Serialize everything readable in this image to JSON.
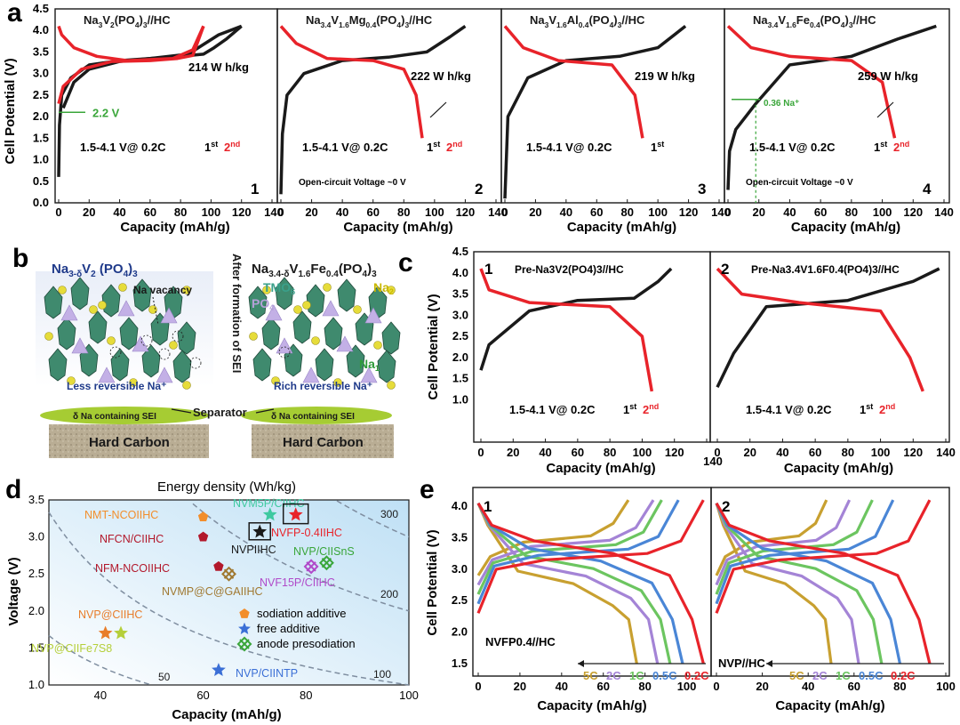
{
  "figure": {
    "panel_letters": [
      "a",
      "b",
      "c",
      "d",
      "e"
    ],
    "a": {
      "ylabel": "Cell Potential (V)",
      "xlabel": "Capacity (mAh/g)",
      "panels": [
        {
          "title": [
            "Na",
            "3",
            "V",
            "2",
            "(PO",
            "4",
            ")",
            "3",
            "//HC"
          ],
          "number": "1",
          "energy": "214 W h/kg",
          "cond": "1.5-4.1 V@ 0.2C",
          "annot": "2.2 V",
          "ocv": "",
          "cycles": [
            "1st",
            "2nd"
          ]
        },
        {
          "title": [
            "Na",
            "3.4",
            "V",
            "1.6",
            "Mg",
            "0.4",
            "(PO",
            "4",
            ")",
            "3",
            "//HC"
          ],
          "number": "2",
          "energy": "222 W h/kg",
          "cond": "1.5-4.1 V@ 0.2C",
          "annot": "",
          "ocv": "Open-circuit Voltage ~0 V",
          "cycles": [
            "1st",
            "2nd"
          ]
        },
        {
          "title": [
            "Na",
            "3",
            "V",
            "1.6",
            "Al",
            "0.4",
            "(PO",
            "4",
            ")",
            "3",
            "//HC"
          ],
          "number": "3",
          "energy": "219 W h/kg",
          "cond": "1.5-4.1 V@ 0.2C",
          "annot": "",
          "ocv": "",
          "cycles": [
            "1st"
          ]
        },
        {
          "title": [
            "Na",
            "3.4",
            "V",
            "1.6",
            "Fe",
            "0.4",
            "(PO",
            "4",
            ")",
            "3",
            "//HC"
          ],
          "number": "4",
          "energy": "259 W h/kg",
          "cond": "1.5-4.1 V@ 0.2C",
          "annot": "0.36 Na⁺",
          "ocv": "Open-circuit Voltage ~0 V",
          "cycles": [
            "1st",
            "2nd"
          ]
        }
      ]
    },
    "b": {
      "left_formula": "Na3-δV2 (PO4)3",
      "right_formula": "Na3.4-δV1.6Fe0.4(PO4)3",
      "na_vacancy": "Na vacancy",
      "tmo6": "TMO6",
      "po4": "PO4",
      "na2": "Na2",
      "na1": "Na1",
      "after_sei": "After formation of SEI",
      "less_rev": "Less reversible Na⁺",
      "rich_rev": "Rich reversible Na⁺",
      "separator": "Separator",
      "sei": "δ Na containing SEI",
      "hard_carbon": "Hard Carbon"
    },
    "c": {
      "ylabel": "Cell Potential (V)",
      "xlabel": "Capacity (mAh/g)",
      "panels": [
        {
          "number": "1",
          "title": "Pre-Na3V2(PO4)3//HC",
          "cond": "1.5-4.1 V@ 0.2C",
          "cycles": [
            "1st",
            "2nd"
          ]
        },
        {
          "number": "2",
          "title": "Pre-Na3.4V1.6F0.4(PO4)3//HC",
          "cond": "1.5-4.1 V@ 0.2C",
          "cycles": [
            "1st",
            "2nd"
          ]
        }
      ]
    },
    "d": {
      "title": "Energy density  (Wh/kg)",
      "xlabel": "Capacity  (mAh/g)",
      "ylabel": "Voltage (V)",
      "contour_labels": [
        "300",
        "200",
        "100",
        "50"
      ],
      "legend": [
        "sodiation additive",
        "free additive",
        "anode presodiation"
      ]
    },
    "e": {
      "ylabel": "Cell Potential (V)",
      "xlabel": "Capacity (mAh/g)",
      "panels": [
        {
          "number": "1",
          "label": "NVFP0.4//HC"
        },
        {
          "number": "2",
          "label": "NVP//HC"
        }
      ],
      "rates": [
        "5C",
        "2C",
        "1C",
        "0.5C",
        "0.2C"
      ]
    }
  },
  "chart_data": [
    {
      "type": "line",
      "panel": "a1",
      "title": "Na3V2(PO4)3//HC",
      "xlabel": "Capacity (mAh/g)",
      "ylabel": "Cell Potential (V)",
      "xlim": [
        0,
        140
      ],
      "ylim": [
        0,
        4.5
      ],
      "series": [
        {
          "name": "1st",
          "color": "#1a1a1a",
          "points": [
            [
              0,
              0.6
            ],
            [
              0.5,
              1.8
            ],
            [
              2,
              2.5
            ],
            [
              8,
              2.9
            ],
            [
              20,
              3.2
            ],
            [
              40,
              3.3
            ],
            [
              60,
              3.35
            ],
            [
              80,
              3.4
            ],
            [
              95,
              3.45
            ],
            [
              102,
              3.6
            ],
            [
              110,
              3.8
            ],
            [
              120,
              4.1
            ]
          ]
        },
        {
          "name": "1st",
          "color": "#1a1a1a",
          "points": [
            [
              120,
              4.1
            ],
            [
              105,
              3.9
            ],
            [
              85,
              3.45
            ],
            [
              60,
              3.35
            ],
            [
              40,
              3.28
            ],
            [
              20,
              3.1
            ],
            [
              10,
              2.8
            ],
            [
              3,
              2.2
            ]
          ]
        },
        {
          "name": "2nd",
          "color": "#e8232a",
          "points": [
            [
              0,
              2.3
            ],
            [
              3,
              2.7
            ],
            [
              15,
              3.1
            ],
            [
              35,
              3.28
            ],
            [
              60,
              3.3
            ],
            [
              78,
              3.35
            ],
            [
              88,
              3.42
            ],
            [
              95,
              4.1
            ]
          ]
        },
        {
          "name": "2nd",
          "color": "#e8232a",
          "points": [
            [
              95,
              4.1
            ],
            [
              88,
              3.55
            ],
            [
              75,
              3.35
            ],
            [
              45,
              3.3
            ],
            [
              25,
              3.4
            ],
            [
              10,
              3.6
            ],
            [
              2,
              3.9
            ],
            [
              0,
              4.1
            ]
          ]
        }
      ]
    },
    {
      "type": "line",
      "panel": "a2",
      "title": "Na3.4V1.6Mg0.4(PO4)3//HC",
      "xlim": [
        0,
        140
      ],
      "ylim": [
        0,
        4.5
      ],
      "series": [
        {
          "name": "1st",
          "color": "#1a1a1a",
          "points": [
            [
              0,
              0.2
            ],
            [
              1,
              1.6
            ],
            [
              4,
              2.5
            ],
            [
              15,
              3.0
            ],
            [
              40,
              3.3
            ],
            [
              70,
              3.38
            ],
            [
              95,
              3.5
            ],
            [
              110,
              3.85
            ],
            [
              120,
              4.1
            ]
          ]
        },
        {
          "name": "2nd",
          "color": "#e8232a",
          "points": [
            [
              0,
              4.1
            ],
            [
              10,
              3.7
            ],
            [
              30,
              3.35
            ],
            [
              60,
              3.3
            ],
            [
              80,
              3.1
            ],
            [
              88,
              2.5
            ],
            [
              92,
              1.5
            ]
          ]
        }
      ]
    },
    {
      "type": "line",
      "panel": "a3",
      "title": "Na3V1.6Al0.4(PO4)3//HC",
      "xlim": [
        0,
        140
      ],
      "ylim": [
        0,
        4.5
      ],
      "series": [
        {
          "name": "1st",
          "color": "#1a1a1a",
          "points": [
            [
              0,
              0.1
            ],
            [
              2,
              2.0
            ],
            [
              15,
              2.9
            ],
            [
              40,
              3.3
            ],
            [
              75,
              3.4
            ],
            [
              100,
              3.6
            ],
            [
              118,
              4.1
            ]
          ]
        },
        {
          "name": "2nd",
          "color": "#e8232a",
          "points": [
            [
              0,
              4.1
            ],
            [
              12,
              3.6
            ],
            [
              35,
              3.3
            ],
            [
              70,
              3.2
            ],
            [
              85,
              2.5
            ],
            [
              90,
              1.5
            ]
          ]
        }
      ]
    },
    {
      "type": "line",
      "panel": "a4",
      "title": "Na3.4V1.6Fe0.4(PO4)3//HC",
      "xlim": [
        0,
        140
      ],
      "ylim": [
        0,
        4.5
      ],
      "series": [
        {
          "name": "1st",
          "color": "#1a1a1a",
          "points": [
            [
              0,
              0.3
            ],
            [
              1,
              1.2
            ],
            [
              5,
              1.7
            ],
            [
              18,
              2.3
            ],
            [
              40,
              3.2
            ],
            [
              80,
              3.4
            ],
            [
              110,
              3.8
            ],
            [
              135,
              4.1
            ]
          ]
        },
        {
          "name": "2nd",
          "color": "#e8232a",
          "points": [
            [
              0,
              4.1
            ],
            [
              15,
              3.6
            ],
            [
              40,
              3.4
            ],
            [
              80,
              3.3
            ],
            [
              100,
              2.8
            ],
            [
              108,
              1.5
            ]
          ]
        }
      ]
    },
    {
      "type": "line",
      "panel": "c1",
      "title": "Pre-Na3V2(PO4)3//HC",
      "xlim": [
        0,
        140
      ],
      "ylim": [
        0,
        4.5
      ],
      "series": [
        {
          "name": "1st",
          "color": "#1a1a1a",
          "points": [
            [
              0,
              1.7
            ],
            [
              5,
              2.3
            ],
            [
              30,
              3.1
            ],
            [
              60,
              3.35
            ],
            [
              95,
              3.4
            ],
            [
              110,
              3.8
            ],
            [
              118,
              4.1
            ]
          ]
        },
        {
          "name": "2nd",
          "color": "#e8232a",
          "points": [
            [
              0,
              4.1
            ],
            [
              5,
              3.6
            ],
            [
              30,
              3.3
            ],
            [
              80,
              3.2
            ],
            [
              100,
              2.5
            ],
            [
              106,
              1.2
            ]
          ]
        }
      ]
    },
    {
      "type": "line",
      "panel": "c2",
      "title": "Pre-Na3.4V1.6F0.4(PO4)3//HC",
      "xlim": [
        0,
        140
      ],
      "ylim": [
        0,
        4.5
      ],
      "series": [
        {
          "name": "1st",
          "color": "#1a1a1a",
          "points": [
            [
              0,
              1.3
            ],
            [
              10,
              2.1
            ],
            [
              30,
              3.2
            ],
            [
              80,
              3.35
            ],
            [
              120,
              3.8
            ],
            [
              136,
              4.1
            ]
          ]
        },
        {
          "name": "2nd",
          "color": "#e8232a",
          "points": [
            [
              0,
              4.1
            ],
            [
              15,
              3.5
            ],
            [
              50,
              3.3
            ],
            [
              100,
              3.1
            ],
            [
              118,
              2.0
            ],
            [
              126,
              1.2
            ]
          ]
        }
      ]
    },
    {
      "type": "scatter",
      "panel": "d",
      "title": "Energy density  (Wh/kg)",
      "xlabel": "Capacity  (mAh/g)",
      "ylabel": "Voltage (V)",
      "xlim": [
        30,
        100
      ],
      "ylim": [
        1.0,
        3.5
      ],
      "points": [
        {
          "label": "NMT-NCOIIHC",
          "x": 60,
          "y": 3.27,
          "group": "sodiation additive",
          "color": "#f28e2b"
        },
        {
          "label": "NFCN/CIIHC",
          "x": 60,
          "y": 3.0,
          "group": "sodiation additive",
          "color": "#b2182b"
        },
        {
          "label": "NFM-NCOIIHC",
          "x": 63,
          "y": 2.6,
          "group": "sodiation additive",
          "color": "#b2182b"
        },
        {
          "label": "NVM5P/CIIHC",
          "x": 73,
          "y": 3.3,
          "group": "free additive",
          "color": "#3ec9a0"
        },
        {
          "label": "NVFP-0.4IIHC",
          "x": 78,
          "y": 3.3,
          "group": "free additive",
          "color": "#e8232a"
        },
        {
          "label": "NVPIIHC",
          "x": 71,
          "y": 3.07,
          "group": "free additive",
          "color": "#1a1a1a"
        },
        {
          "label": "NVP/CIISnS",
          "x": 84,
          "y": 2.65,
          "group": "anode presodiation",
          "color": "#3aa63a"
        },
        {
          "label": "NVF15P/CIIHC",
          "x": 81,
          "y": 2.6,
          "group": "anode presodiation",
          "color": "#b04ac9"
        },
        {
          "label": "NVMP@C@GAIIHC",
          "x": 65,
          "y": 2.5,
          "group": "anode presodiation",
          "color": "#a07830"
        },
        {
          "label": "NVP@CIIHC",
          "x": 41,
          "y": 1.7,
          "group": "free additive",
          "color": "#e87d2a"
        },
        {
          "label": "NVP@CIIFe7S8",
          "x": 44,
          "y": 1.7,
          "group": "free additive",
          "color": "#b5cf3a"
        },
        {
          "label": "NVP/CIINTP",
          "x": 63,
          "y": 1.2,
          "group": "free additive",
          "color": "#3b6fd6"
        }
      ]
    },
    {
      "type": "line",
      "panel": "e1",
      "label": "NVFP0.4//HC",
      "xlim": [
        0,
        110
      ],
      "ylim": [
        1.3,
        4.3
      ],
      "series": [
        {
          "name": "5C",
          "color": "#c8a030",
          "charge_end": 72,
          "discharge_end": 76
        },
        {
          "name": "2C",
          "color": "#a484d6",
          "charge_end": 84,
          "discharge_end": 86
        },
        {
          "name": "1C",
          "color": "#6cc560",
          "charge_end": 88,
          "discharge_end": 92
        },
        {
          "name": "0.5C",
          "color": "#4a86d6",
          "charge_end": 96,
          "discharge_end": 98
        },
        {
          "name": "0.2C",
          "color": "#e8232a",
          "charge_end": 108,
          "discharge_end": 108
        }
      ]
    },
    {
      "type": "line",
      "panel": "e2",
      "label": "NVP//HC",
      "xlim": [
        0,
        100
      ],
      "ylim": [
        1.3,
        4.3
      ],
      "series": [
        {
          "name": "5C",
          "color": "#c8a030",
          "charge_end": 48,
          "discharge_end": 50
        },
        {
          "name": "2C",
          "color": "#a484d6",
          "charge_end": 58,
          "discharge_end": 62
        },
        {
          "name": "1C",
          "color": "#6cc560",
          "charge_end": 68,
          "discharge_end": 72
        },
        {
          "name": "0.5C",
          "color": "#4a86d6",
          "charge_end": 77,
          "discharge_end": 80
        },
        {
          "name": "0.2C",
          "color": "#e8232a",
          "charge_end": 93,
          "discharge_end": 93
        }
      ]
    }
  ]
}
